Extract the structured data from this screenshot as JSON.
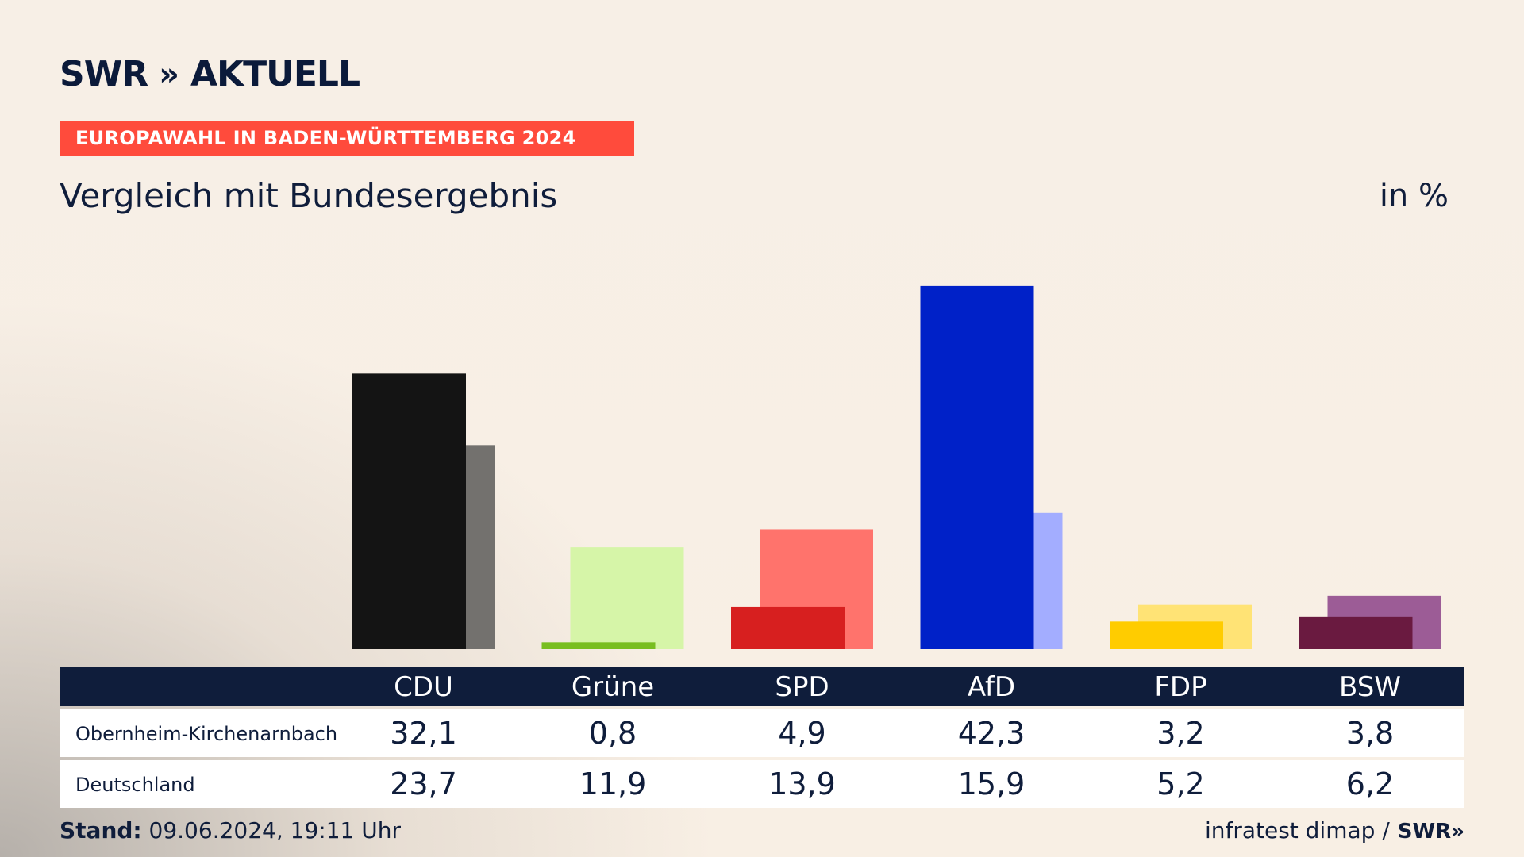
{
  "brand": {
    "logo_text": "SWR",
    "logo_chevrons": "»",
    "logo_suffix": "AKTUELL"
  },
  "banner": "EUROPAWAHL IN BADEN-WÜRTTEMBERG 2024",
  "subtitle": "Vergleich mit Bundesergebnis",
  "unit": "in %",
  "chart_data": {
    "type": "bar",
    "categories": [
      "CDU",
      "Grüne",
      "SPD",
      "AfD",
      "FDP",
      "BSW"
    ],
    "series": [
      {
        "name": "Obernheim-Kirchenarnbach",
        "values": [
          32.1,
          0.8,
          4.9,
          42.3,
          3.2,
          3.8
        ]
      },
      {
        "name": "Deutschland",
        "values": [
          23.7,
          11.9,
          13.9,
          15.9,
          5.2,
          6.2
        ]
      }
    ],
    "value_labels": {
      "Obernheim-Kirchenarnbach": [
        "32,1",
        "0,8",
        "4,9",
        "42,3",
        "3,2",
        "3,8"
      ],
      "Deutschland": [
        "23,7",
        "11,9",
        "13,9",
        "15,9",
        "5,2",
        "6,2"
      ]
    },
    "colors": {
      "primary": [
        "#141414",
        "#78be20",
        "#d71f1f",
        "#0021c8",
        "#ffcc00",
        "#6a1a40"
      ],
      "secondary": [
        "#73716e",
        "#d6f5a8",
        "#ff736c",
        "#a3adff",
        "#ffe375",
        "#9c5c96"
      ]
    },
    "ylim": [
      0,
      45
    ]
  },
  "table": {
    "rows": [
      "Obernheim-Kirchenarnbach",
      "Deutschland"
    ]
  },
  "footer": {
    "stand_label": "Stand:",
    "stand_value": "09.06.2024, 19:11 Uhr",
    "source": "infratest dimap /",
    "source_brand": "SWR»"
  }
}
